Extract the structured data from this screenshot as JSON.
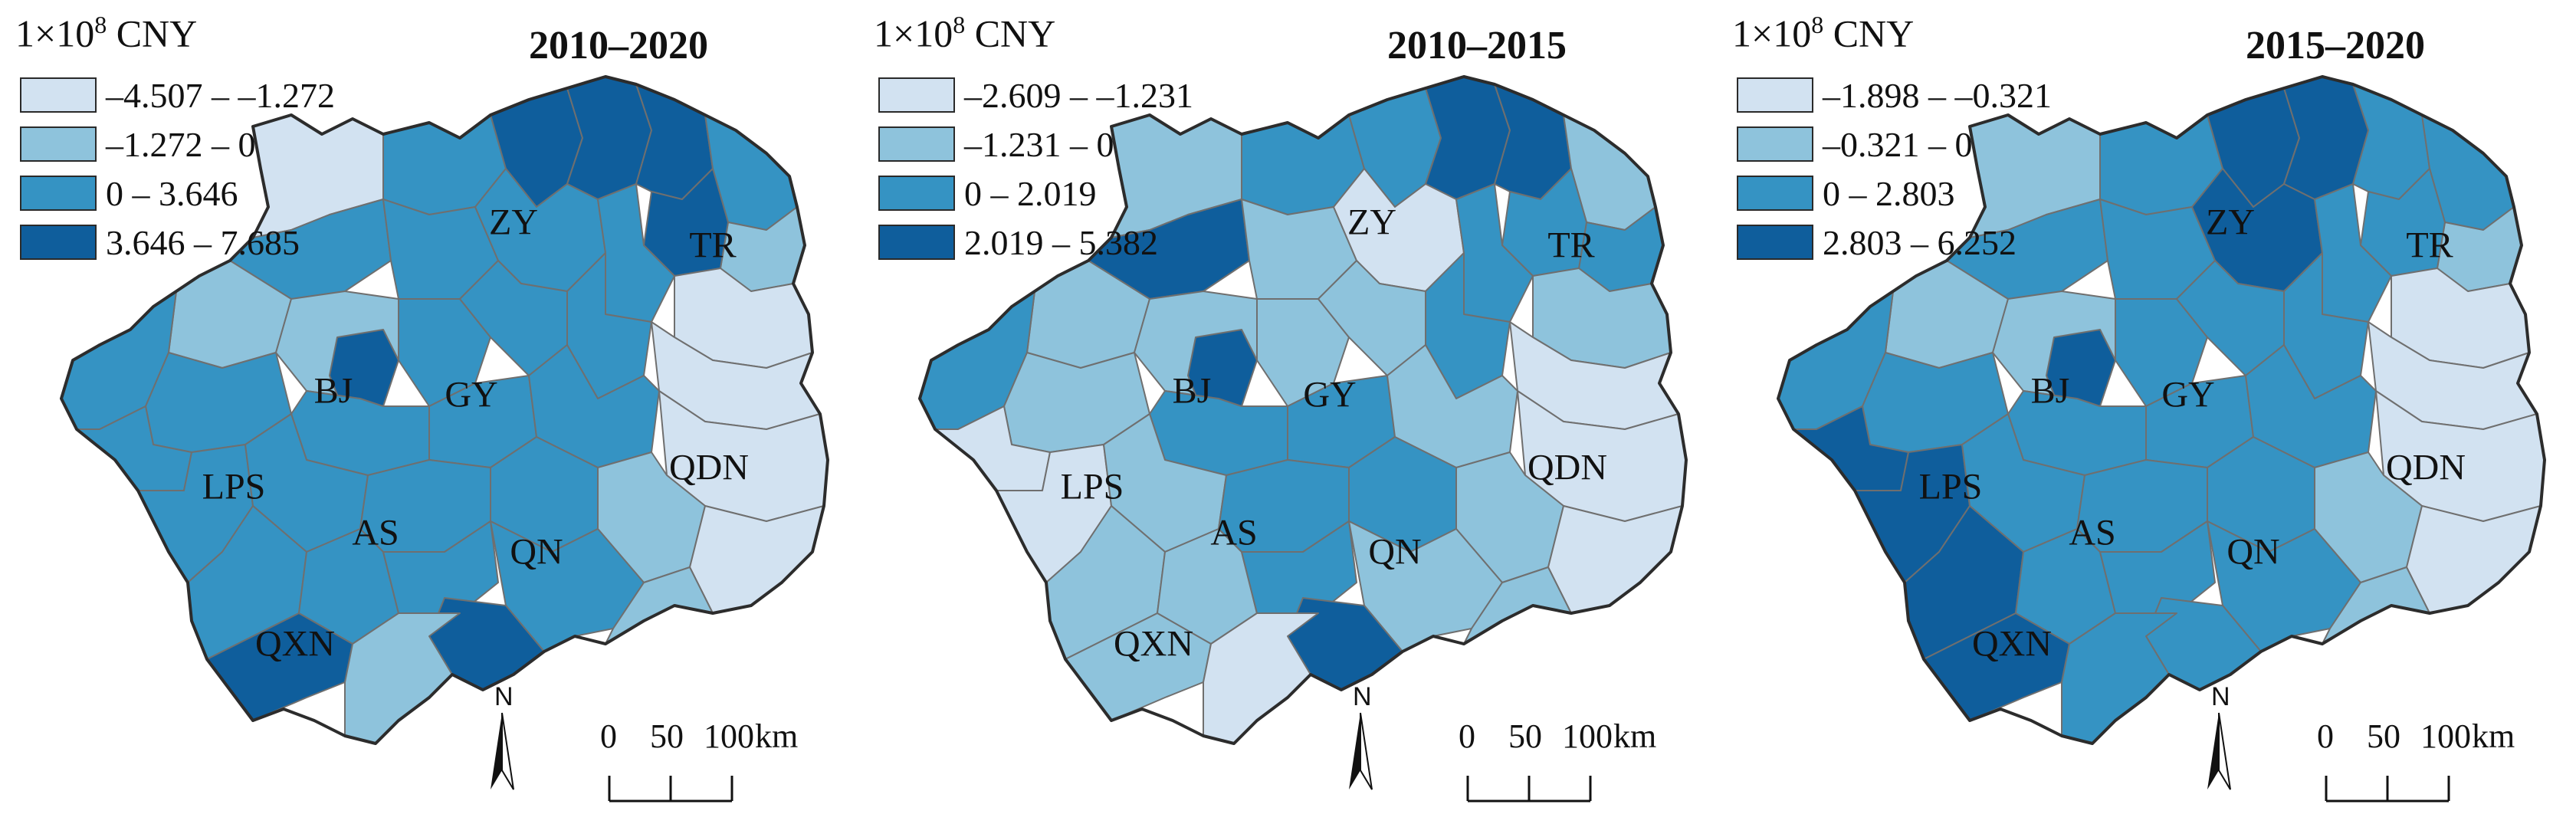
{
  "colors": {
    "class1": "#d2e2f1",
    "class2": "#8ec3dc",
    "class3": "#3593c3",
    "class4": "#0f5e9c",
    "boundary_outer": "#2c2c2c",
    "boundary_inner": "#6f6f6f"
  },
  "unit": {
    "base": "1×10",
    "exponent": "8",
    "currency": " CNY"
  },
  "north_arrow": {
    "letter": "N",
    "icon": "north-arrow-icon"
  },
  "scale_bar": {
    "ticks": [
      "0",
      "50",
      "100"
    ],
    "unit": "km"
  },
  "panels": [
    {
      "title": "2010–2020",
      "legend": [
        "–4.507 – –1.272",
        "–1.272 – 0",
        "0 – 3.646",
        "3.646 – 7.685"
      ],
      "regions": [
        "ZY",
        "TR",
        "BJ",
        "GY",
        "LPS",
        "AS",
        "QN",
        "QDN",
        "QXN"
      ]
    },
    {
      "title": "2010–2015",
      "legend": [
        "–2.609 – –1.231",
        "–1.231 – 0",
        "0 – 2.019",
        "2.019 – 5.382"
      ],
      "regions": [
        "ZY",
        "TR",
        "BJ",
        "GY",
        "LPS",
        "AS",
        "QN",
        "QDN",
        "QXN"
      ]
    },
    {
      "title": "2015–2020",
      "legend": [
        "–1.898 – –0.321",
        "–0.321 – 0",
        "0 – 2.803",
        "2.803 – 6.252"
      ],
      "regions": [
        "ZY",
        "TR",
        "BJ",
        "GY",
        "LPS",
        "AS",
        "QN",
        "QDN",
        "QXN"
      ]
    }
  ]
}
